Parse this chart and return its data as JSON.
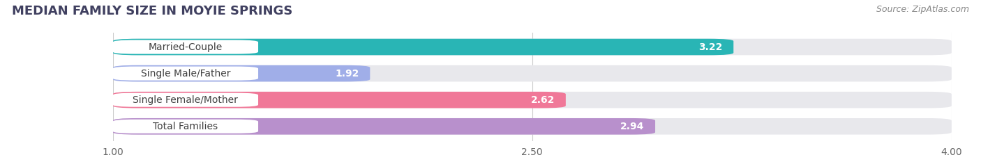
{
  "title": "MEDIAN FAMILY SIZE IN MOYIE SPRINGS",
  "source": "Source: ZipAtlas.com",
  "categories": [
    "Married-Couple",
    "Single Male/Father",
    "Single Female/Mother",
    "Total Families"
  ],
  "values": [
    3.22,
    1.92,
    2.62,
    2.94
  ],
  "bar_colors": [
    "#29b5b5",
    "#a0aee8",
    "#f07898",
    "#b890cc"
  ],
  "xlim": [
    1.0,
    4.0
  ],
  "xticks": [
    1.0,
    2.5,
    4.0
  ],
  "background_color": "#ffffff",
  "bar_bg_color": "#e8e8ec",
  "title_color": "#404060",
  "source_color": "#888888",
  "value_text_color": "#ffffff",
  "label_text_color": "#404040",
  "title_fontsize": 13,
  "source_fontsize": 9,
  "tick_fontsize": 10,
  "value_fontsize": 10,
  "label_fontsize": 10,
  "bar_height": 0.62,
  "figsize": [
    14.06,
    2.33
  ],
  "dpi": 100
}
